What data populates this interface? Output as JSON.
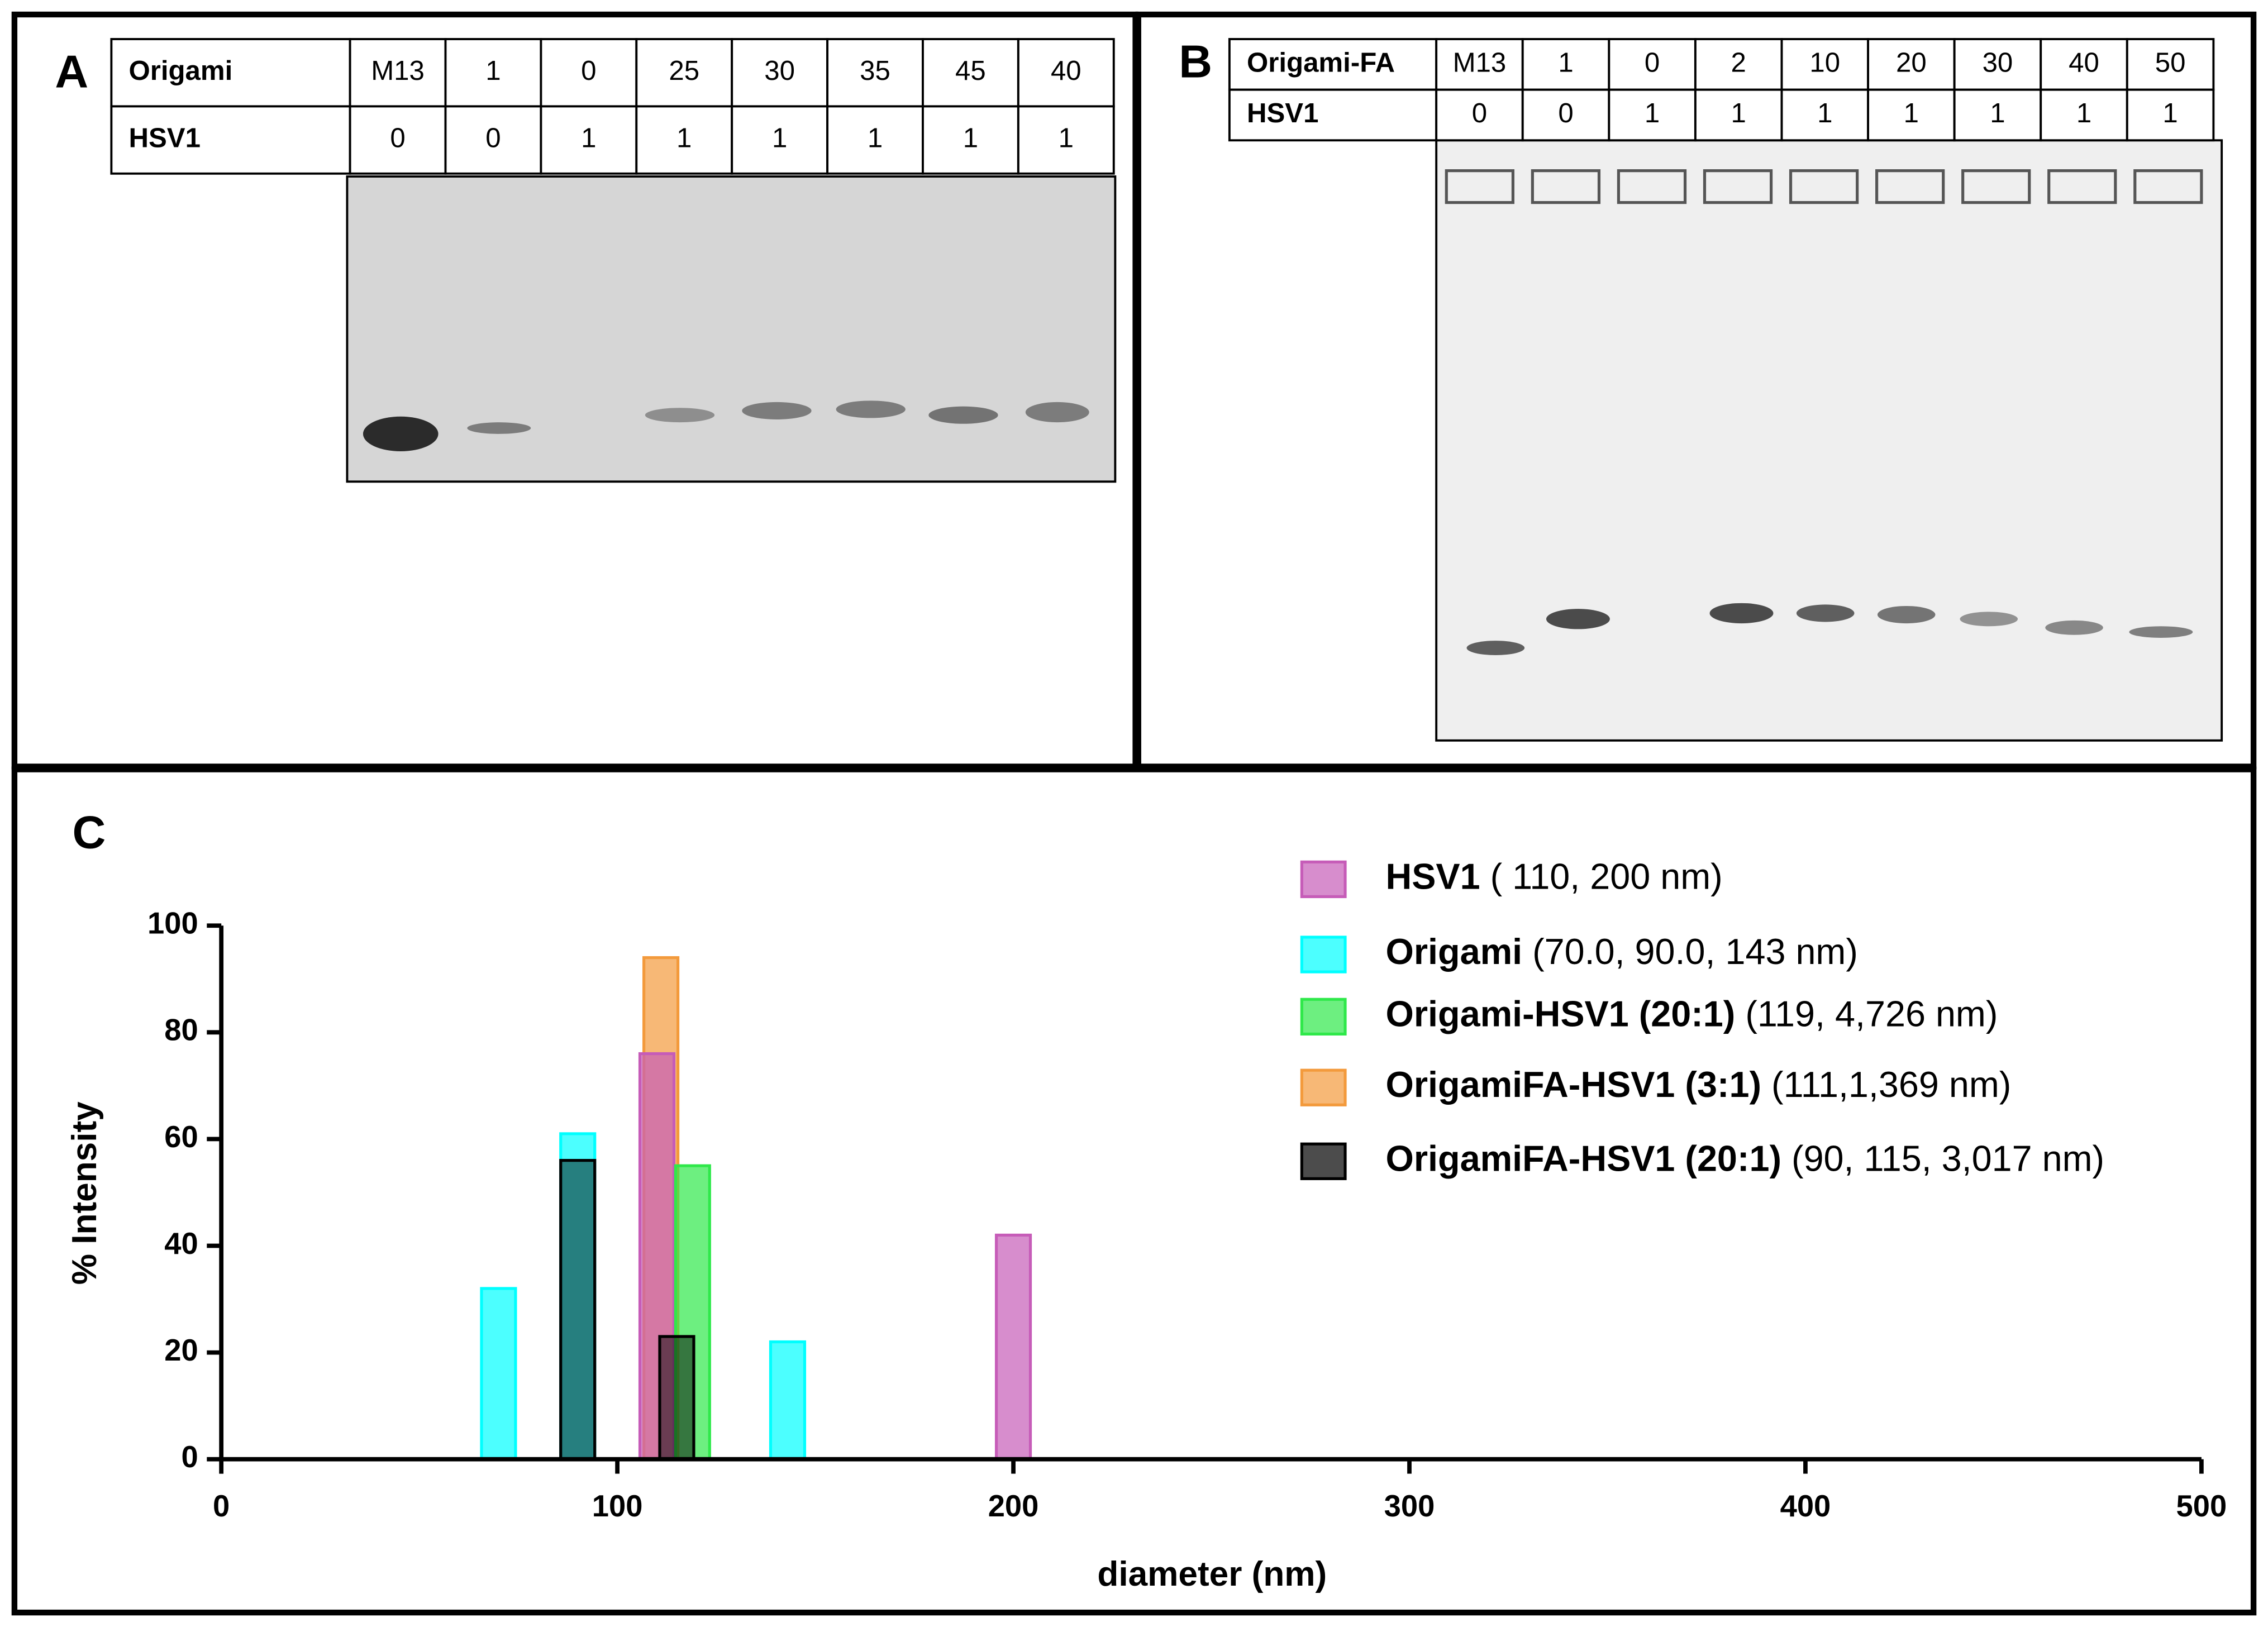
{
  "panels": {
    "A": {
      "label": "A",
      "table": {
        "rows": [
          [
            "Origami",
            "M13",
            "1",
            "0",
            "25",
            "30",
            "35",
            "45",
            "40"
          ],
          [
            "HSV1",
            "0",
            "0",
            "1",
            "1",
            "1",
            "1",
            "1",
            "1"
          ]
        ]
      }
    },
    "B": {
      "label": "B",
      "table": {
        "rows": [
          [
            "Origami-FA",
            "M13",
            "1",
            "0",
            "2",
            "10",
            "20",
            "30",
            "40",
            "50"
          ],
          [
            "HSV1",
            "0",
            "0",
            "1",
            "1",
            "1",
            "1",
            "1",
            "1",
            "1"
          ]
        ]
      }
    },
    "C": {
      "label": "C"
    }
  },
  "chart_data": {
    "type": "bar",
    "xlabel": "diameter (nm)",
    "ylabel": "% Intensity",
    "xlim": [
      0,
      500
    ],
    "xticks": [
      0,
      100,
      200,
      300,
      400,
      500
    ],
    "ylim": [
      0,
      100
    ],
    "yticks": [
      0,
      20,
      40,
      60,
      80,
      100
    ],
    "series": [
      {
        "name": "Origami",
        "legend_detail": "(70.0, 90.0, 143 nm)",
        "color": "#00ffff",
        "x": [
          70,
          90,
          143
        ],
        "values": [
          32,
          61,
          22
        ]
      },
      {
        "name": "OrigamiFA-HSV1 (3:1)",
        "legend_detail": "(111,1,369 nm)",
        "color": "#f39a3c",
        "x": [
          111
        ],
        "values": [
          94
        ]
      },
      {
        "name": "HSV1",
        "legend_detail": "( 110, 200 nm)",
        "color": "#c65cb8",
        "x": [
          110,
          200
        ],
        "values": [
          76,
          42
        ]
      },
      {
        "name": "Origami-HSV1 (20:1)",
        "legend_detail": "(119, 4,726 nm)",
        "color": "#2fe84a",
        "x": [
          119
        ],
        "values": [
          55
        ]
      },
      {
        "name": "OrigamiFA-HSV1 (20:1)",
        "legend_detail": "(90, 115, 3,017 nm)",
        "color": "#000000",
        "x": [
          90,
          115
        ],
        "values": [
          56,
          23
        ]
      }
    ],
    "legend_order": [
      "HSV1",
      "Origami",
      "Origami-HSV1 (20:1)",
      "OrigamiFA-HSV1 (3:1)",
      "OrigamiFA-HSV1 (20:1)"
    ]
  }
}
